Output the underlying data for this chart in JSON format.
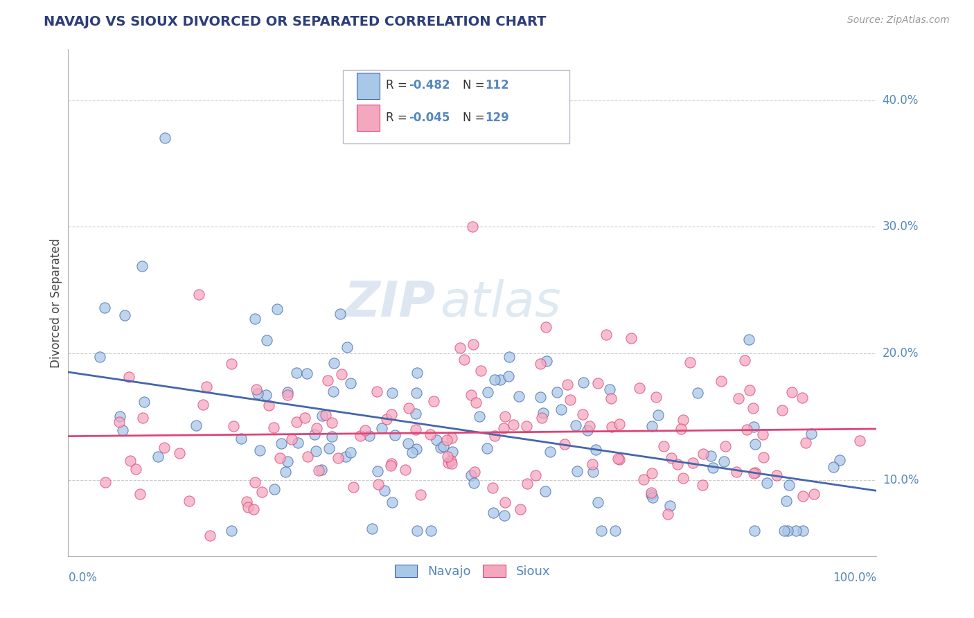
{
  "title": "NAVAJO VS SIOUX DIVORCED OR SEPARATED CORRELATION CHART",
  "source": "Source: ZipAtlas.com",
  "ylabel": "Divorced or Separated",
  "xlim": [
    0.0,
    1.0
  ],
  "ylim": [
    0.04,
    0.44
  ],
  "yticks": [
    0.1,
    0.2,
    0.3,
    0.4
  ],
  "ytick_labels": [
    "10.0%",
    "20.0%",
    "30.0%",
    "40.0%"
  ],
  "navajo_R": -0.482,
  "navajo_N": 112,
  "sioux_R": -0.045,
  "sioux_N": 129,
  "navajo_color": "#a8c8e8",
  "sioux_color": "#f4a8c0",
  "navajo_line_color": "#4466aa",
  "sioux_line_color": "#dd4477",
  "legend_label_navajo": "Navajo",
  "legend_label_sioux": "Sioux",
  "background_color": "#ffffff",
  "grid_color": "#cccccc",
  "title_color": "#2c3e7a",
  "axis_color": "#5588bb",
  "label_color": "#333333",
  "watermark": "ZIPatlas",
  "watermark_zip": "ZIP",
  "watermark_atlas": "atlas"
}
